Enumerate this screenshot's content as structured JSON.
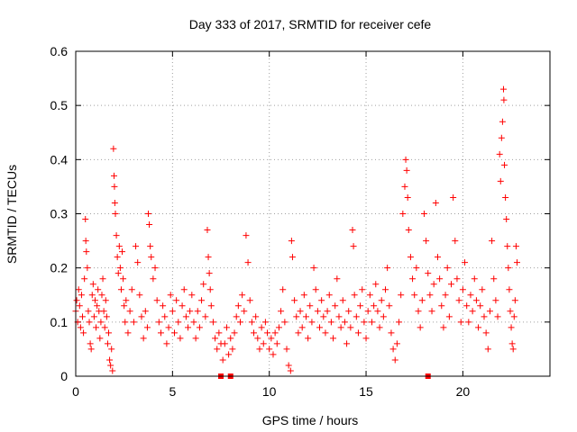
{
  "chart_data": {
    "type": "scatter",
    "title": "Day 333 of 2017, SRMTID for receiver cefe",
    "xlabel": "GPS time / hours",
    "ylabel": "SRMTID / TECUs",
    "xlim": [
      0,
      24.5
    ],
    "ylim": [
      0,
      0.6
    ],
    "xticks": [
      0,
      5,
      10,
      15,
      20
    ],
    "xtick_labels": [
      "0",
      "5",
      "10",
      "15",
      "20"
    ],
    "yticks": [
      0,
      0.1,
      0.2,
      0.3,
      0.4,
      0.5,
      0.6
    ],
    "ytick_labels": [
      "0",
      "0.1",
      "0.2",
      "0.3",
      "0.4",
      "0.5",
      "0.6"
    ],
    "grid": true,
    "marker": "+",
    "color": "#ff0000",
    "series": [
      {
        "name": "SRMTID",
        "points": [
          [
            0.0,
            0.12
          ],
          [
            0.05,
            0.14
          ],
          [
            0.1,
            0.1
          ],
          [
            0.15,
            0.16
          ],
          [
            0.2,
            0.13
          ],
          [
            0.25,
            0.09
          ],
          [
            0.3,
            0.15
          ],
          [
            0.35,
            0.11
          ],
          [
            0.4,
            0.08
          ],
          [
            0.45,
            0.18
          ],
          [
            0.5,
            0.29
          ],
          [
            0.52,
            0.25
          ],
          [
            0.55,
            0.23
          ],
          [
            0.6,
            0.2
          ],
          [
            0.65,
            0.12
          ],
          [
            0.7,
            0.1
          ],
          [
            0.75,
            0.06
          ],
          [
            0.8,
            0.05
          ],
          [
            0.85,
            0.15
          ],
          [
            0.9,
            0.17
          ],
          [
            0.95,
            0.11
          ],
          [
            1.0,
            0.14
          ],
          [
            1.05,
            0.09
          ],
          [
            1.1,
            0.13
          ],
          [
            1.15,
            0.16
          ],
          [
            1.2,
            0.12
          ],
          [
            1.25,
            0.07
          ],
          [
            1.3,
            0.1
          ],
          [
            1.35,
            0.15
          ],
          [
            1.4,
            0.18
          ],
          [
            1.45,
            0.12
          ],
          [
            1.5,
            0.09
          ],
          [
            1.55,
            0.14
          ],
          [
            1.6,
            0.11
          ],
          [
            1.65,
            0.06
          ],
          [
            1.7,
            0.08
          ],
          [
            1.75,
            0.03
          ],
          [
            1.8,
            0.02
          ],
          [
            1.85,
            0.05
          ],
          [
            1.9,
            0.01
          ],
          [
            1.95,
            0.42
          ],
          [
            1.98,
            0.37
          ],
          [
            2.0,
            0.35
          ],
          [
            2.02,
            0.32
          ],
          [
            2.05,
            0.3
          ],
          [
            2.1,
            0.26
          ],
          [
            2.15,
            0.22
          ],
          [
            2.2,
            0.19
          ],
          [
            2.25,
            0.24
          ],
          [
            2.3,
            0.2
          ],
          [
            2.35,
            0.16
          ],
          [
            2.4,
            0.23
          ],
          [
            2.45,
            0.18
          ],
          [
            2.5,
            0.13
          ],
          [
            2.55,
            0.1
          ],
          [
            2.6,
            0.14
          ],
          [
            2.7,
            0.08
          ],
          [
            2.8,
            0.12
          ],
          [
            2.9,
            0.16
          ],
          [
            3.0,
            0.1
          ],
          [
            3.1,
            0.24
          ],
          [
            3.2,
            0.21
          ],
          [
            3.3,
            0.15
          ],
          [
            3.4,
            0.11
          ],
          [
            3.5,
            0.07
          ],
          [
            3.6,
            0.12
          ],
          [
            3.7,
            0.09
          ],
          [
            3.75,
            0.3
          ],
          [
            3.8,
            0.28
          ],
          [
            3.85,
            0.24
          ],
          [
            3.9,
            0.22
          ],
          [
            4.0,
            0.18
          ],
          [
            4.1,
            0.2
          ],
          [
            4.2,
            0.14
          ],
          [
            4.3,
            0.1
          ],
          [
            4.4,
            0.08
          ],
          [
            4.5,
            0.13
          ],
          [
            4.6,
            0.11
          ],
          [
            4.7,
            0.06
          ],
          [
            4.8,
            0.09
          ],
          [
            4.9,
            0.15
          ],
          [
            5.0,
            0.12
          ],
          [
            5.1,
            0.08
          ],
          [
            5.2,
            0.14
          ],
          [
            5.3,
            0.1
          ],
          [
            5.4,
            0.07
          ],
          [
            5.5,
            0.13
          ],
          [
            5.6,
            0.16
          ],
          [
            5.7,
            0.11
          ],
          [
            5.8,
            0.09
          ],
          [
            5.9,
            0.12
          ],
          [
            6.0,
            0.15
          ],
          [
            6.1,
            0.1
          ],
          [
            6.2,
            0.07
          ],
          [
            6.3,
            0.12
          ],
          [
            6.4,
            0.09
          ],
          [
            6.5,
            0.14
          ],
          [
            6.6,
            0.17
          ],
          [
            6.7,
            0.11
          ],
          [
            6.8,
            0.27
          ],
          [
            6.85,
            0.22
          ],
          [
            6.9,
            0.19
          ],
          [
            6.95,
            0.16
          ],
          [
            7.0,
            0.13
          ],
          [
            7.1,
            0.1
          ],
          [
            7.2,
            0.07
          ],
          [
            7.3,
            0.05
          ],
          [
            7.4,
            0.08
          ],
          [
            7.5,
            0.06
          ],
          [
            7.6,
            0.03
          ],
          [
            7.7,
            0.06
          ],
          [
            7.8,
            0.09
          ],
          [
            7.9,
            0.04
          ],
          [
            8.0,
            0.07
          ],
          [
            8.1,
            0.05
          ],
          [
            8.2,
            0.08
          ],
          [
            8.3,
            0.11
          ],
          [
            8.4,
            0.13
          ],
          [
            8.5,
            0.1
          ],
          [
            8.6,
            0.15
          ],
          [
            8.7,
            0.12
          ],
          [
            8.8,
            0.26
          ],
          [
            8.9,
            0.21
          ],
          [
            9.0,
            0.14
          ],
          [
            9.1,
            0.1
          ],
          [
            9.2,
            0.08
          ],
          [
            9.3,
            0.11
          ],
          [
            9.4,
            0.07
          ],
          [
            9.5,
            0.05
          ],
          [
            9.6,
            0.09
          ],
          [
            9.7,
            0.06
          ],
          [
            9.8,
            0.1
          ],
          [
            9.9,
            0.08
          ],
          [
            10.0,
            0.05
          ],
          [
            10.1,
            0.07
          ],
          [
            10.2,
            0.04
          ],
          [
            10.3,
            0.08
          ],
          [
            10.4,
            0.06
          ],
          [
            10.5,
            0.09
          ],
          [
            10.6,
            0.12
          ],
          [
            10.7,
            0.16
          ],
          [
            10.8,
            0.1
          ],
          [
            10.9,
            0.05
          ],
          [
            11.0,
            0.02
          ],
          [
            11.1,
            0.01
          ],
          [
            11.15,
            0.25
          ],
          [
            11.2,
            0.22
          ],
          [
            11.3,
            0.14
          ],
          [
            11.4,
            0.11
          ],
          [
            11.5,
            0.08
          ],
          [
            11.6,
            0.12
          ],
          [
            11.7,
            0.09
          ],
          [
            11.8,
            0.15
          ],
          [
            11.9,
            0.11
          ],
          [
            12.0,
            0.07
          ],
          [
            12.1,
            0.13
          ],
          [
            12.2,
            0.1
          ],
          [
            12.3,
            0.2
          ],
          [
            12.4,
            0.16
          ],
          [
            12.5,
            0.12
          ],
          [
            12.6,
            0.09
          ],
          [
            12.7,
            0.14
          ],
          [
            12.8,
            0.11
          ],
          [
            12.9,
            0.08
          ],
          [
            13.0,
            0.12
          ],
          [
            13.1,
            0.15
          ],
          [
            13.2,
            0.1
          ],
          [
            13.3,
            0.07
          ],
          [
            13.4,
            0.13
          ],
          [
            13.5,
            0.18
          ],
          [
            13.6,
            0.11
          ],
          [
            13.7,
            0.09
          ],
          [
            13.8,
            0.14
          ],
          [
            13.9,
            0.1
          ],
          [
            14.0,
            0.06
          ],
          [
            14.1,
            0.12
          ],
          [
            14.2,
            0.09
          ],
          [
            14.3,
            0.27
          ],
          [
            14.35,
            0.24
          ],
          [
            14.4,
            0.15
          ],
          [
            14.5,
            0.11
          ],
          [
            14.6,
            0.08
          ],
          [
            14.7,
            0.13
          ],
          [
            14.8,
            0.16
          ],
          [
            14.9,
            0.1
          ],
          [
            15.0,
            0.07
          ],
          [
            15.1,
            0.12
          ],
          [
            15.2,
            0.15
          ],
          [
            15.3,
            0.1
          ],
          [
            15.4,
            0.13
          ],
          [
            15.5,
            0.17
          ],
          [
            15.6,
            0.12
          ],
          [
            15.7,
            0.09
          ],
          [
            15.8,
            0.14
          ],
          [
            15.9,
            0.11
          ],
          [
            16.0,
            0.16
          ],
          [
            16.1,
            0.2
          ],
          [
            16.2,
            0.13
          ],
          [
            16.3,
            0.08
          ],
          [
            16.4,
            0.05
          ],
          [
            16.5,
            0.03
          ],
          [
            16.6,
            0.06
          ],
          [
            16.7,
            0.1
          ],
          [
            16.8,
            0.15
          ],
          [
            16.9,
            0.3
          ],
          [
            17.0,
            0.35
          ],
          [
            17.05,
            0.4
          ],
          [
            17.1,
            0.38
          ],
          [
            17.15,
            0.33
          ],
          [
            17.2,
            0.27
          ],
          [
            17.3,
            0.22
          ],
          [
            17.4,
            0.18
          ],
          [
            17.5,
            0.15
          ],
          [
            17.6,
            0.2
          ],
          [
            17.7,
            0.12
          ],
          [
            17.8,
            0.09
          ],
          [
            17.9,
            0.14
          ],
          [
            18.0,
            0.3
          ],
          [
            18.1,
            0.25
          ],
          [
            18.2,
            0.19
          ],
          [
            18.3,
            0.15
          ],
          [
            18.4,
            0.12
          ],
          [
            18.5,
            0.17
          ],
          [
            18.6,
            0.32
          ],
          [
            18.7,
            0.22
          ],
          [
            18.8,
            0.18
          ],
          [
            18.9,
            0.13
          ],
          [
            19.0,
            0.09
          ],
          [
            19.1,
            0.15
          ],
          [
            19.2,
            0.2
          ],
          [
            19.3,
            0.11
          ],
          [
            19.4,
            0.17
          ],
          [
            19.5,
            0.33
          ],
          [
            19.6,
            0.25
          ],
          [
            19.7,
            0.18
          ],
          [
            19.8,
            0.14
          ],
          [
            19.9,
            0.1
          ],
          [
            20.0,
            0.16
          ],
          [
            20.1,
            0.21
          ],
          [
            20.2,
            0.13
          ],
          [
            20.3,
            0.1
          ],
          [
            20.4,
            0.15
          ],
          [
            20.5,
            0.12
          ],
          [
            20.6,
            0.18
          ],
          [
            20.7,
            0.14
          ],
          [
            20.8,
            0.09
          ],
          [
            20.9,
            0.13
          ],
          [
            21.0,
            0.16
          ],
          [
            21.1,
            0.11
          ],
          [
            21.2,
            0.08
          ],
          [
            21.3,
            0.05
          ],
          [
            21.4,
            0.12
          ],
          [
            21.5,
            0.25
          ],
          [
            21.6,
            0.18
          ],
          [
            21.7,
            0.14
          ],
          [
            21.8,
            0.11
          ],
          [
            21.9,
            0.41
          ],
          [
            21.95,
            0.36
          ],
          [
            22.0,
            0.44
          ],
          [
            22.05,
            0.47
          ],
          [
            22.1,
            0.53
          ],
          [
            22.12,
            0.51
          ],
          [
            22.15,
            0.39
          ],
          [
            22.2,
            0.33
          ],
          [
            22.25,
            0.29
          ],
          [
            22.3,
            0.24
          ],
          [
            22.35,
            0.2
          ],
          [
            22.4,
            0.16
          ],
          [
            22.45,
            0.12
          ],
          [
            22.5,
            0.09
          ],
          [
            22.55,
            0.06
          ],
          [
            22.6,
            0.05
          ],
          [
            22.65,
            0.11
          ],
          [
            22.7,
            0.14
          ],
          [
            22.75,
            0.24
          ],
          [
            22.8,
            0.21
          ]
        ]
      }
    ],
    "gap_markers_x": [
      7.5,
      8.0,
      18.2
    ],
    "gap_markers_y": 0
  }
}
